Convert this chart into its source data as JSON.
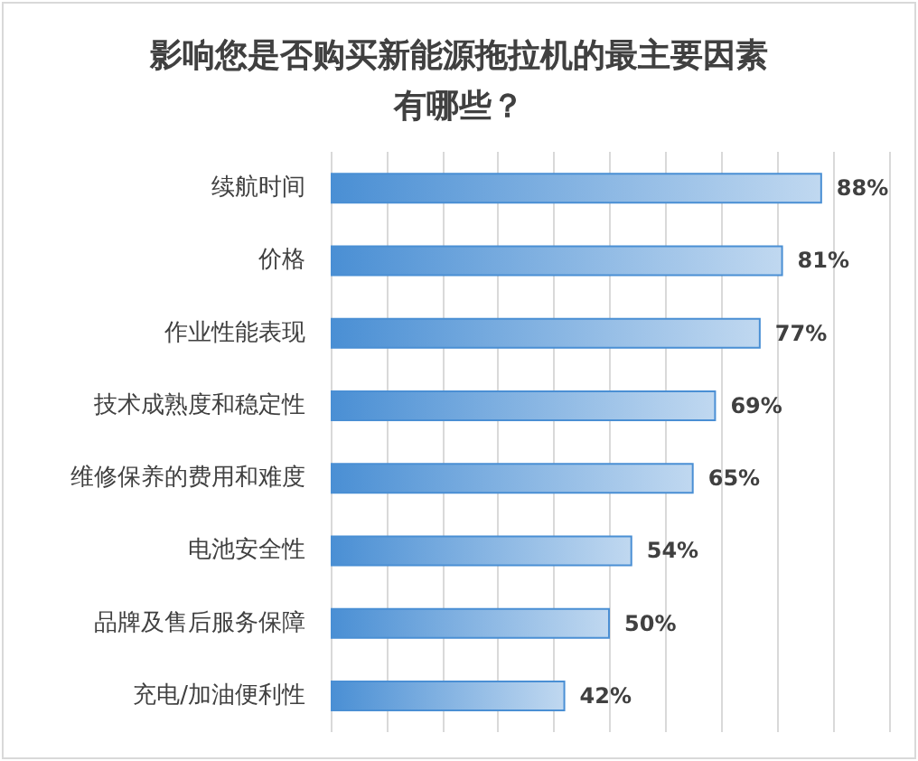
{
  "chart_data": {
    "type": "bar",
    "orientation": "horizontal",
    "title": "影响您是否购买新能源拖拉机的最主要因素有哪些？",
    "categories": [
      "续航时间",
      "价格",
      "作业性能表现",
      "技术成熟度和稳定性",
      "维修保养的费用和难度",
      "电池安全性",
      "品牌及售后服务保障",
      "充电/加油便利性"
    ],
    "values": [
      88,
      81,
      77,
      69,
      65,
      54,
      50,
      42
    ],
    "color": "#4a8fd4",
    "xlim": [
      0,
      100
    ],
    "xticks": [
      {
        "value": 0,
        "label": null
      },
      {
        "value": 10,
        "label": null
      },
      {
        "value": 20,
        "label": null
      },
      {
        "value": 30,
        "label": null
      },
      {
        "value": 40,
        "label": null
      },
      {
        "value": 50,
        "label": null
      },
      {
        "value": 60,
        "label": null
      },
      {
        "value": 70,
        "label": null
      },
      {
        "value": 80,
        "label": null
      },
      {
        "value": 90,
        "label": null
      },
      {
        "value": 100,
        "label": null
      }
    ],
    "value_labels": [
      "88%",
      "81%",
      "77%",
      "69%",
      "65%",
      "54%",
      "50%",
      "42%"
    ],
    "grid": "x",
    "tick_labels": "y"
  }
}
